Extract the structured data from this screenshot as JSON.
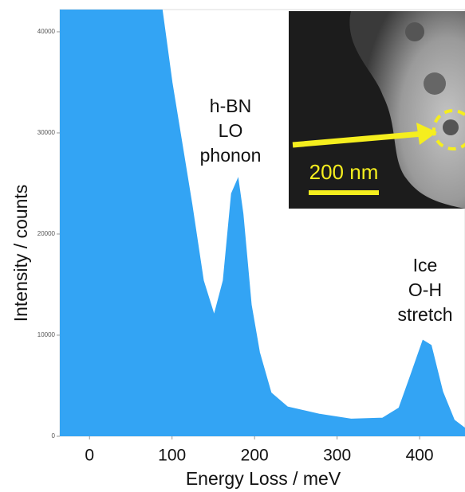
{
  "chart_data": {
    "type": "area",
    "x_label": "Energy Loss / meV",
    "y_label": "Intensity / counts",
    "x": [
      -36,
      88,
      100,
      114,
      124,
      138,
      151,
      162,
      172,
      180,
      186,
      196,
      206,
      220,
      240,
      278,
      317,
      355,
      375,
      389,
      404,
      414,
      428,
      442,
      455
    ],
    "values": [
      42200,
      42200,
      35000,
      28000,
      23000,
      15400,
      12000,
      15400,
      24000,
      25500,
      22000,
      13000,
      8300,
      4300,
      2900,
      2200,
      1700,
      1800,
      2800,
      6000,
      9500,
      9000,
      4400,
      1600,
      800
    ],
    "color": "#33a4f4",
    "xlim": [
      -36,
      455
    ],
    "ylim": [
      0,
      42200
    ],
    "xticks": [
      0,
      100,
      200,
      300,
      400
    ],
    "yticks": [
      0,
      10000,
      20000,
      30000,
      40000
    ],
    "annotations": [
      {
        "lines": [
          "h-BN",
          "LO",
          "phonon"
        ]
      },
      {
        "lines": [
          "Ice",
          "O-H",
          "stretch"
        ]
      }
    ],
    "inset_scale_label": "200 nm"
  }
}
